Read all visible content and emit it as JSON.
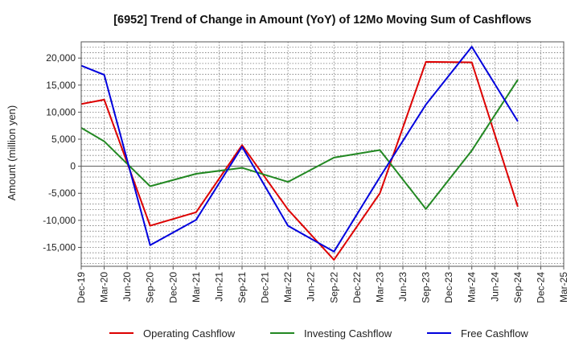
{
  "chart_data": {
    "type": "line",
    "title": "[6952]  Trend of Change in Amount (YoY) of 12Mo Moving Sum of Cashflows",
    "xlabel": "",
    "ylabel": "Amount (million yen)",
    "ylim": [
      -18500,
      23000
    ],
    "yticks": [
      -15000,
      -10000,
      -5000,
      0,
      5000,
      10000,
      15000,
      20000
    ],
    "ytick_labels": [
      "-15,000",
      "-10,000",
      "-5,000",
      "0",
      "5,000",
      "10,000",
      "15,000",
      "20,000"
    ],
    "categories": [
      "Dec-19",
      "Mar-20",
      "Jun-20",
      "Sep-20",
      "Dec-20",
      "Mar-21",
      "Jun-21",
      "Sep-21",
      "Dec-21",
      "Mar-22",
      "Jun-22",
      "Sep-22",
      "Dec-22",
      "Mar-23",
      "Jun-23",
      "Sep-23",
      "Dec-23",
      "Mar-24",
      "Jun-24",
      "Sep-24",
      "Dec-24",
      "Mar-25"
    ],
    "grid": true,
    "legend_position": "bottom",
    "series": [
      {
        "name": "Operating Cashflow",
        "color": "#dd0000",
        "values": [
          11500,
          12300,
          null,
          -11000,
          null,
          -8500,
          null,
          3900,
          null,
          -8000,
          null,
          -17300,
          null,
          -5000,
          null,
          19300,
          null,
          19200,
          null,
          -7500,
          null,
          null
        ]
      },
      {
        "name": "Investing Cashflow",
        "color": "#228822",
        "values": [
          7100,
          4600,
          null,
          -3700,
          null,
          -1400,
          null,
          -300,
          null,
          -2900,
          null,
          1600,
          null,
          3000,
          null,
          -7900,
          null,
          2900,
          null,
          16000,
          null,
          null
        ]
      },
      {
        "name": "Free Cashflow",
        "color": "#0000dd",
        "values": [
          18600,
          16900,
          null,
          -14600,
          null,
          -9900,
          null,
          3600,
          null,
          -11000,
          null,
          -15800,
          null,
          -2000,
          null,
          11400,
          null,
          22100,
          null,
          8300,
          null,
          null
        ]
      }
    ]
  }
}
